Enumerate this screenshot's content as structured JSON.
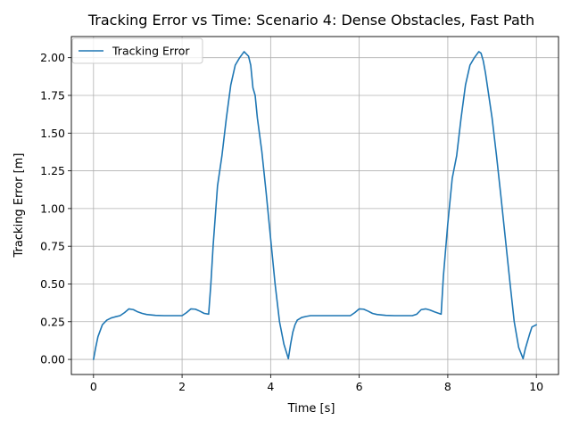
{
  "chart_data": {
    "type": "line",
    "title": "Tracking Error vs Time: Scenario 4: Dense Obstacles, Fast Path",
    "xlabel": "Time [s]",
    "ylabel": "Tracking Error [m]",
    "xlim": [
      -0.5,
      10.5
    ],
    "ylim": [
      -0.1,
      2.14
    ],
    "xticks": [
      0,
      2,
      4,
      6,
      8,
      10
    ],
    "xtick_labels": [
      "0",
      "2",
      "4",
      "6",
      "8",
      "10"
    ],
    "yticks": [
      0.0,
      0.25,
      0.5,
      0.75,
      1.0,
      1.25,
      1.5,
      1.75,
      2.0
    ],
    "ytick_labels": [
      "0.00",
      "0.25",
      "0.50",
      "0.75",
      "1.00",
      "1.25",
      "1.50",
      "1.75",
      "2.00"
    ],
    "grid": true,
    "legend_position": "top-left",
    "series": [
      {
        "name": "Tracking Error",
        "color": "#1f77b4",
        "x": [
          0,
          0.05,
          0.1,
          0.2,
          0.3,
          0.4,
          0.5,
          0.6,
          0.7,
          0.8,
          0.9,
          1.0,
          1.1,
          1.2,
          1.4,
          1.6,
          1.8,
          2.0,
          2.1,
          2.2,
          2.3,
          2.4,
          2.5,
          2.6,
          2.65,
          2.7,
          2.8,
          2.9,
          3.0,
          3.1,
          3.2,
          3.3,
          3.4,
          3.5,
          3.55,
          3.6,
          3.65,
          3.7,
          3.8,
          3.9,
          4.0,
          4.1,
          4.2,
          4.3,
          4.4,
          4.45,
          4.5,
          4.55,
          4.6,
          4.7,
          4.8,
          4.9,
          5.0,
          5.2,
          5.4,
          5.6,
          5.8,
          5.9,
          6.0,
          6.1,
          6.2,
          6.3,
          6.4,
          6.6,
          6.8,
          7.0,
          7.2,
          7.3,
          7.4,
          7.5,
          7.6,
          7.7,
          7.8,
          7.85,
          7.9,
          8.0,
          8.1,
          8.2,
          8.3,
          8.4,
          8.5,
          8.6,
          8.7,
          8.75,
          8.8,
          8.85,
          8.9,
          9.0,
          9.1,
          9.2,
          9.3,
          9.4,
          9.5,
          9.6,
          9.7,
          9.75,
          9.8,
          9.85,
          9.9,
          10.0
        ],
        "values": [
          0.0,
          0.08,
          0.15,
          0.23,
          0.26,
          0.275,
          0.283,
          0.29,
          0.31,
          0.335,
          0.33,
          0.315,
          0.305,
          0.298,
          0.292,
          0.29,
          0.29,
          0.29,
          0.31,
          0.335,
          0.333,
          0.32,
          0.305,
          0.3,
          0.5,
          0.75,
          1.15,
          1.35,
          1.6,
          1.82,
          1.95,
          2.0,
          2.04,
          2.01,
          1.95,
          1.8,
          1.75,
          1.6,
          1.38,
          1.1,
          0.8,
          0.5,
          0.25,
          0.1,
          0.005,
          0.1,
          0.18,
          0.23,
          0.26,
          0.278,
          0.285,
          0.29,
          0.29,
          0.29,
          0.29,
          0.29,
          0.29,
          0.31,
          0.335,
          0.333,
          0.32,
          0.305,
          0.298,
          0.292,
          0.29,
          0.29,
          0.29,
          0.3,
          0.33,
          0.335,
          0.327,
          0.315,
          0.305,
          0.3,
          0.55,
          0.9,
          1.2,
          1.35,
          1.6,
          1.82,
          1.95,
          2.0,
          2.04,
          2.03,
          1.98,
          1.9,
          1.8,
          1.6,
          1.35,
          1.08,
          0.8,
          0.52,
          0.25,
          0.08,
          0.005,
          0.07,
          0.12,
          0.17,
          0.215,
          0.23
        ]
      }
    ]
  }
}
